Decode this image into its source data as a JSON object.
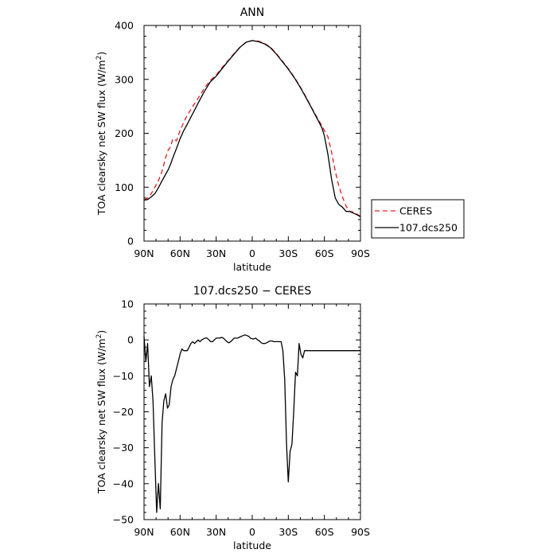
{
  "chart_data": [
    {
      "type": "line",
      "title": "ANN",
      "xlabel": "latitude",
      "ylabel": "TOA clearsky net SW flux (W/m",
      "ylabel_sup": "2",
      "ylabel_end": ")",
      "xlim": [
        90,
        -90
      ],
      "ylim": [
        0,
        400
      ],
      "x_ticks": [
        90,
        60,
        30,
        0,
        -30,
        -60,
        -90
      ],
      "x_tick_labels": [
        "90N",
        "60N",
        "30N",
        "0",
        "30S",
        "60S",
        "90S"
      ],
      "y_ticks": [
        0,
        100,
        200,
        300,
        400
      ],
      "y_tick_labels": [
        "0",
        "100",
        "200",
        "300",
        "400"
      ],
      "legend": {
        "placement": "right",
        "entries": [
          "CERES",
          "107.dcs250"
        ]
      },
      "series": [
        {
          "name": "CERES",
          "color": "#e41a1c",
          "dash": "dashed",
          "x": [
            90,
            87,
            84,
            81,
            78,
            75,
            72,
            70,
            68,
            66,
            63,
            60,
            57,
            54,
            51,
            48,
            45,
            40,
            35,
            30,
            25,
            20,
            15,
            10,
            5,
            0,
            -5,
            -10,
            -15,
            -20,
            -25,
            -30,
            -35,
            -40,
            -45,
            -50,
            -55,
            -58,
            -60,
            -63,
            -66,
            -69,
            -72,
            -75,
            -78,
            -81,
            -84,
            -87,
            -90
          ],
          "y": [
            76,
            80,
            88,
            100,
            112,
            130,
            155,
            168,
            175,
            190,
            186,
            205,
            220,
            234,
            244,
            255,
            265,
            283,
            298,
            308,
            322,
            335,
            348,
            360,
            369,
            372,
            371,
            367,
            360,
            348,
            334,
            320,
            304,
            286,
            266,
            245,
            225,
            214,
            205,
            193,
            165,
            130,
            102,
            82,
            65,
            55,
            54,
            50,
            46
          ]
        },
        {
          "name": "107.dcs250",
          "color": "#000000",
          "dash": "solid",
          "x": [
            90,
            87,
            84,
            81,
            78,
            75,
            72,
            70,
            68,
            66,
            63,
            60,
            57,
            54,
            51,
            48,
            45,
            40,
            35,
            30,
            25,
            20,
            15,
            10,
            5,
            0,
            -5,
            -10,
            -15,
            -20,
            -25,
            -30,
            -35,
            -40,
            -45,
            -50,
            -55,
            -58,
            -60,
            -63,
            -66,
            -69,
            -72,
            -75,
            -78,
            -81,
            -84,
            -87,
            -90
          ],
          "y": [
            76,
            77,
            82,
            88,
            99,
            112,
            124,
            132,
            142,
            155,
            172,
            190,
            205,
            217,
            230,
            243,
            256,
            277,
            295,
            306,
            320,
            334,
            347,
            360,
            369,
            372,
            370,
            366,
            359,
            347,
            333,
            319,
            303,
            285,
            265,
            244,
            223,
            210,
            195,
            160,
            115,
            80,
            68,
            63,
            55,
            55,
            52,
            49,
            45
          ]
        }
      ]
    },
    {
      "type": "line",
      "title": "107.dcs250 − CERES",
      "xlabel": "latitude",
      "ylabel": "TOA clearsky net SW flux (W/m",
      "ylabel_sup": "2",
      "ylabel_end": ")",
      "xlim": [
        90,
        -90
      ],
      "ylim": [
        -50,
        10
      ],
      "x_ticks": [
        90,
        60,
        30,
        0,
        -30,
        -60,
        -90
      ],
      "x_tick_labels": [
        "90N",
        "60N",
        "30N",
        "0",
        "30S",
        "60S",
        "90S"
      ],
      "y_ticks": [
        -50,
        -40,
        -30,
        -20,
        -10,
        0,
        10
      ],
      "y_tick_labels": [
        "−50",
        "−40",
        "−30",
        "−20",
        "−10",
        "0",
        "10"
      ],
      "series": [
        {
          "color": "#000000",
          "dash": "solid",
          "x": [
            90,
            88.5,
            87,
            85.5,
            84,
            82.5,
            81,
            79.5,
            78,
            76.5,
            75,
            73.5,
            72,
            70.5,
            69,
            67.5,
            66,
            64.5,
            63,
            61.5,
            60,
            58.5,
            57,
            55.5,
            54,
            52.5,
            51,
            49.5,
            48,
            46.5,
            45,
            43.5,
            42,
            40.5,
            39,
            37.5,
            36,
            34.5,
            33,
            31.5,
            30,
            28.5,
            27,
            25.5,
            24,
            22.5,
            21,
            19.5,
            18,
            16.5,
            15,
            13.5,
            12,
            10.5,
            9,
            7.5,
            6,
            4.5,
            3,
            1.5,
            0,
            -1.5,
            -3,
            -4.5,
            -6,
            -7.5,
            -9,
            -10.5,
            -12,
            -13.5,
            -15,
            -16.5,
            -18,
            -19.5,
            -21,
            -22.5,
            -24,
            -25.5,
            -27,
            -28.5,
            -30,
            -31.5,
            -33,
            -34.5,
            -36,
            -37.5,
            -39,
            -40.5,
            -42,
            -43.5,
            -45,
            -46.5,
            -48,
            -49.5,
            -51,
            -52.5,
            -54,
            -55.5,
            -57,
            -58.5,
            -60,
            -61.5,
            -63,
            -64.5,
            -66,
            -67.5,
            -69,
            -70.5,
            -72,
            -73.5,
            -75,
            -76.5,
            -78,
            -79.5,
            -81,
            -82.5,
            -84,
            -85.5,
            -87,
            -88.5,
            -90
          ],
          "y": [
            1,
            -6,
            -1,
            -13,
            -10,
            -17,
            -33,
            -48,
            -40,
            -47,
            -23,
            -17,
            -15,
            -19,
            -18,
            -13,
            -11,
            -10,
            -8,
            -6,
            -4,
            -2.5,
            -3,
            -3,
            -3,
            -2,
            -1,
            -0.5,
            -1,
            -0.5,
            0,
            -0.5,
            0,
            0.3,
            0.5,
            0.5,
            0,
            -0.5,
            -0.5,
            0,
            0.5,
            0.5,
            0.5,
            0.7,
            0.5,
            0,
            -0.5,
            -0.8,
            -0.5,
            0,
            0.5,
            0.5,
            0.5,
            0.8,
            1,
            1.2,
            1.4,
            1.2,
            1,
            0.5,
            0.3,
            0.3,
            0.5,
            0,
            -0.3,
            -0.8,
            -1,
            -1,
            -0.8,
            -0.5,
            -0.3,
            -0.3,
            -0.5,
            -0.5,
            -0.5,
            -0.5,
            -0.5,
            -3,
            -11,
            -29,
            -39.5,
            -31,
            -29,
            -20,
            -9,
            -10,
            -1,
            -4,
            -5,
            -3,
            -3,
            -3,
            -3,
            -3,
            -3,
            -3,
            -3,
            -3,
            -3,
            -3,
            -3,
            -3,
            -3,
            -3,
            -3,
            -3,
            -3,
            -3,
            -3,
            -3,
            -3,
            -3,
            -3,
            -3,
            -3,
            -3,
            -3,
            -3,
            -3,
            -3,
            -3
          ]
        }
      ]
    }
  ]
}
